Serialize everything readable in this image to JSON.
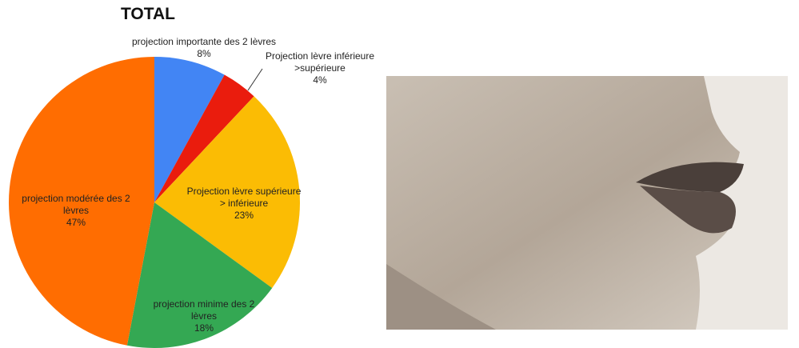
{
  "chart_data": {
    "type": "pie",
    "title": "TOTAL",
    "categories": [
      "projection importante des 2 lèvres",
      "Projection lèvre inférieure >supérieure",
      "Projection lèvre supérieure > inférieure",
      "projection minime des 2 lèvres",
      "projection modérée des 2 lèvres"
    ],
    "values": [
      8,
      4,
      23,
      18,
      47
    ],
    "value_labels": [
      "8%",
      "4%",
      "23%",
      "18%",
      "47%"
    ],
    "colors": [
      "#4285f4",
      "#ea1c0d",
      "#fbbc04",
      "#34a853",
      "#ff6d01"
    ]
  }
}
